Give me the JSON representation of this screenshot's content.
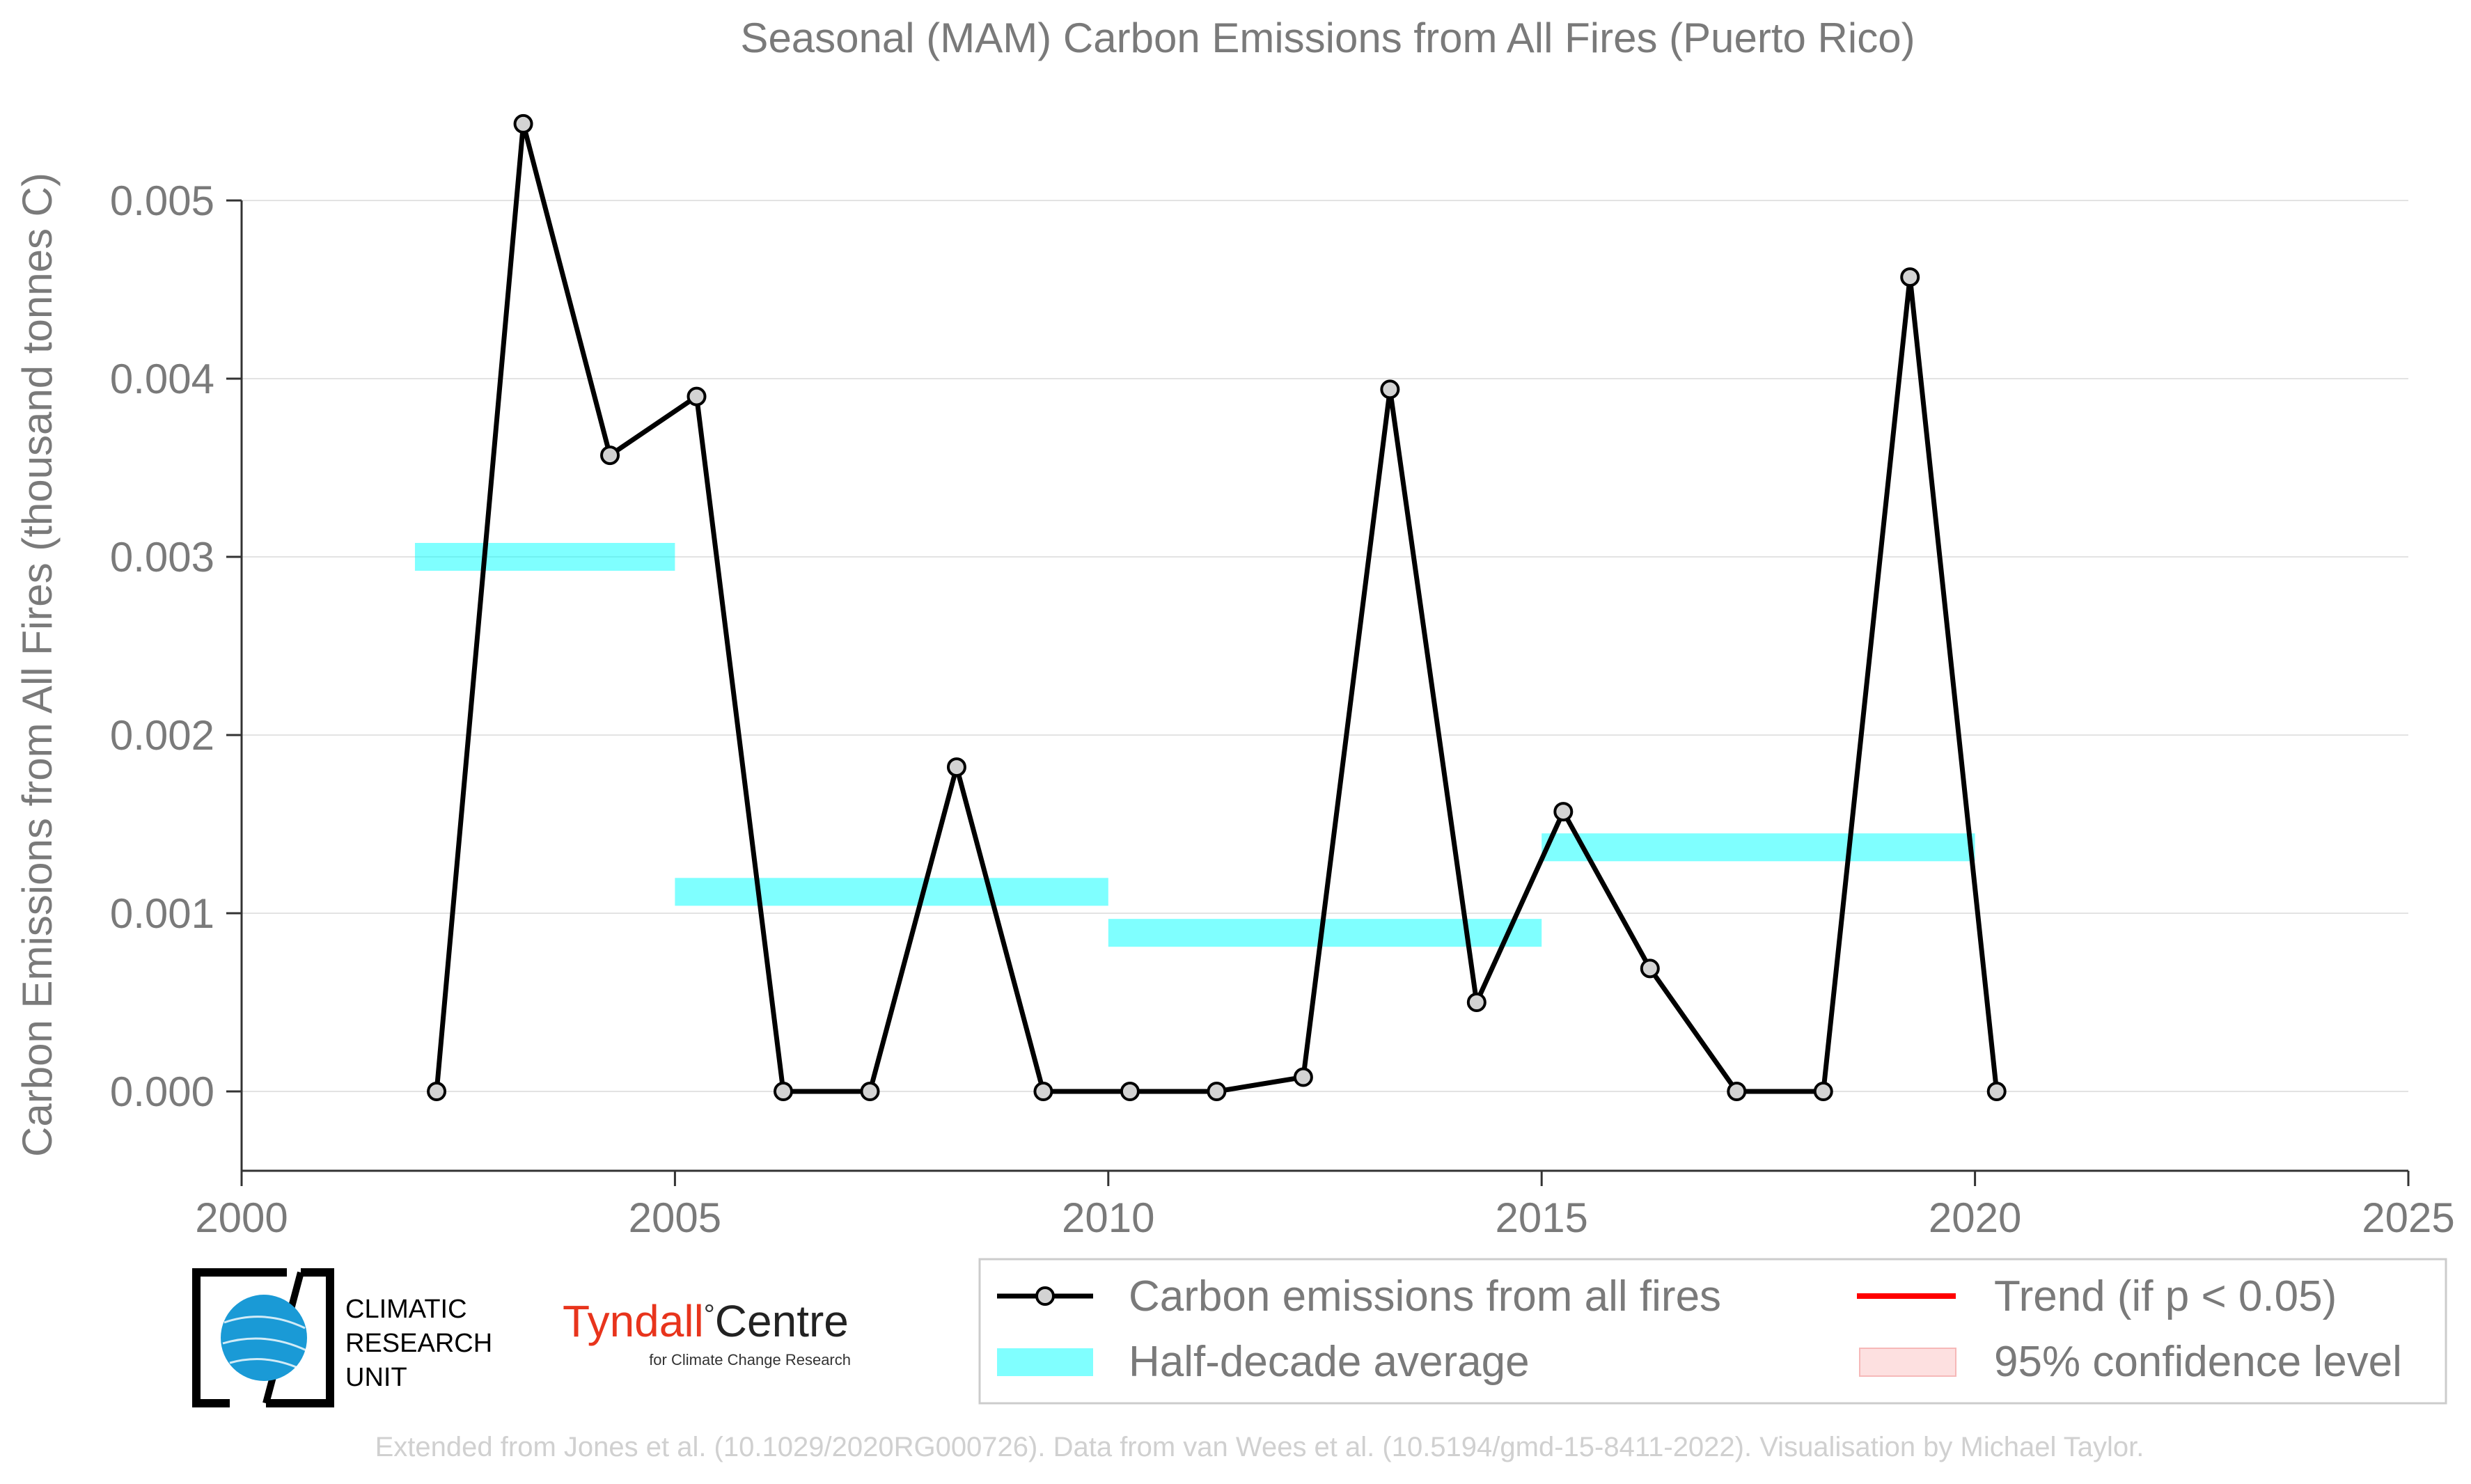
{
  "chart_data": {
    "type": "line",
    "title": "Seasonal (MAM) Carbon Emissions from All Fires (Puerto Rico)",
    "xlabel": "",
    "ylabel": "Carbon Emissions from All Fires (thousand tonnes C)",
    "xlim": [
      2000,
      2025
    ],
    "ylim": [
      -0.00045,
      0.0058
    ],
    "x_ticks": [
      "2000",
      "2005",
      "2010",
      "2015",
      "2020",
      "2025"
    ],
    "y_ticks": [
      "0.000",
      "0.001",
      "0.002",
      "0.003",
      "0.004",
      "0.005"
    ],
    "grid": "horizontal",
    "series": [
      {
        "name": "Carbon emissions from all fires",
        "color": "#000000",
        "marker_color": "#d3d3d3",
        "x": [
          2002,
          2003,
          2004,
          2005,
          2006,
          2007,
          2008,
          2009,
          2010,
          2011,
          2012,
          2013,
          2014,
          2015,
          2016,
          2017,
          2018,
          2019,
          2020
        ],
        "values": [
          0.0,
          0.00543,
          0.00357,
          0.0039,
          0.0,
          0.0,
          0.00182,
          0.0,
          0.0,
          0.0,
          8e-05,
          0.00394,
          0.0005,
          0.00157,
          0.00069,
          0.0,
          0.0,
          0.00457,
          0.0
        ]
      }
    ],
    "half_decade_average": {
      "name": "Half-decade average",
      "color": "#00ffff",
      "segments": [
        {
          "start": 2002,
          "end": 2005,
          "value": 0.003
        },
        {
          "start": 2005,
          "end": 2010,
          "value": 0.00112
        },
        {
          "start": 2010,
          "end": 2015,
          "value": 0.00089
        },
        {
          "start": 2015,
          "end": 2020,
          "value": 0.00137
        }
      ]
    },
    "legend": {
      "placement": "bottom-right",
      "entries": [
        {
          "label": "Carbon emissions from all fires",
          "kind": "line-marker",
          "color": "#000000"
        },
        {
          "label": "Trend (if p < 0.05)",
          "kind": "line",
          "color": "#ff0000"
        },
        {
          "label": "Half-decade average",
          "kind": "patch",
          "color": "#80ffff"
        },
        {
          "label": "95% confidence level",
          "kind": "patch",
          "color": "#fde0e0"
        }
      ]
    }
  },
  "logos": {
    "cru": {
      "line1": "CLIMATIC",
      "line2": "RESEARCH",
      "line3": "UNIT"
    },
    "tyndall": {
      "name": "Tyndall",
      "degree": "°",
      "centre": "Centre",
      "subtitle": "for Climate Change Research",
      "color": "#e8341c"
    }
  },
  "credit": "Extended from Jones et al. (10.1029/2020RG000726). Data from van Wees et al. (10.5194/gmd-15-8411-2022). Visualisation by Michael Taylor."
}
